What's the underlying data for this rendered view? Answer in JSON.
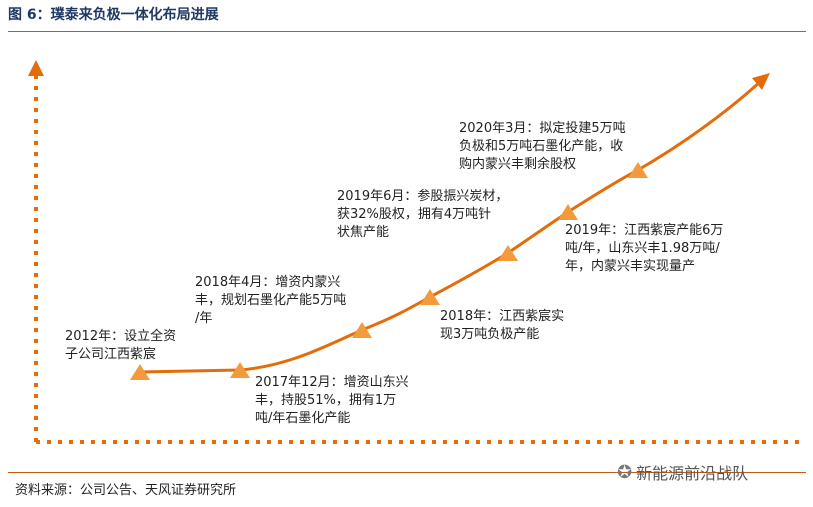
{
  "header": {
    "figure_title": "图 6：璞泰来负极一体化布局进展"
  },
  "footer": {
    "source": "资料来源：公司公告、天风证券研究所",
    "watermark": "新能源前沿战队",
    "watermark_icon": "wechat-icon"
  },
  "colors": {
    "accent": "#e46c0a",
    "arrow": "#e46c0a",
    "title": "#1f3864"
  },
  "milestones": [
    {
      "text": "2012年：设立全资\n子公司江西紫宸"
    },
    {
      "text": "2017年12月：增资山东兴\n丰，持股51%，拥有1万\n吨/年石墨化产能"
    },
    {
      "text": "2018年4月：增资内蒙兴\n丰，规划石墨化产能5万吨\n/年"
    },
    {
      "text": "2018年：江西紫宸实\n现3万吨负极产能"
    },
    {
      "text": "2019年6月：参股振兴炭材，\n获32%股权，拥有4万吨针\n状焦产能"
    },
    {
      "text": "2019年：江西紫宸产能6万\n吨/年，山东兴丰1.98万吨/\n年，内蒙兴丰实现量产"
    },
    {
      "text": "2020年3月：拟定投建5万吨\n负极和5万吨石墨化产能，收\n购内蒙兴丰剩余股权"
    }
  ]
}
